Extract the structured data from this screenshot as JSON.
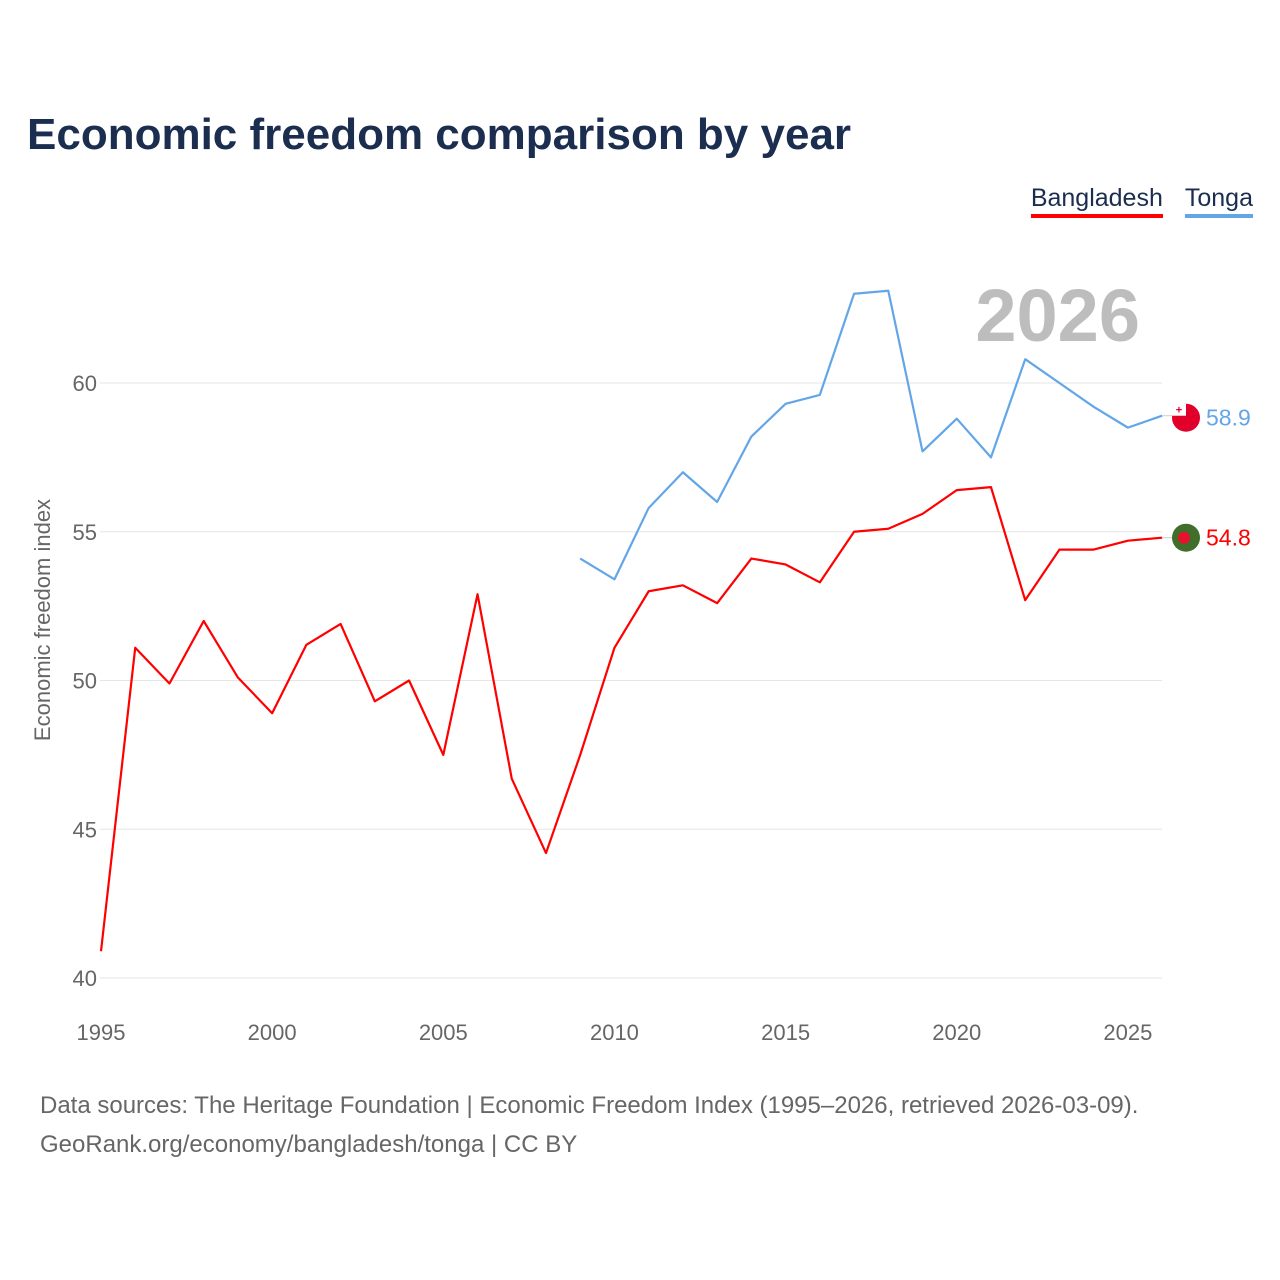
{
  "title": "Economic freedom comparison by year",
  "footer": {
    "line1": "Data sources: The Heritage Foundation | Economic Freedom Index (1995–2026, retrieved 2026-03-09).",
    "line2": "GeoRank.org/economy/bangladesh/tonga | CC BY"
  },
  "chart_data": {
    "type": "line",
    "title": "Economic freedom comparison by year",
    "xlabel": "",
    "ylabel": "Economic freedom index",
    "year_label": "2026",
    "xlim": [
      1995,
      2026
    ],
    "ylim": [
      40,
      64
    ],
    "x_ticks": [
      1995,
      2000,
      2005,
      2010,
      2015,
      2020,
      2025
    ],
    "y_ticks": [
      40,
      45,
      50,
      55,
      60
    ],
    "grid": true,
    "legend_placement": "top-right",
    "series": [
      {
        "name": "Bangladesh",
        "color": "#ff0000",
        "end_label": "54.8",
        "x": [
          1995,
          1996,
          1997,
          1998,
          1999,
          2000,
          2001,
          2002,
          2003,
          2004,
          2005,
          2006,
          2007,
          2008,
          2009,
          2010,
          2011,
          2012,
          2013,
          2014,
          2015,
          2016,
          2017,
          2018,
          2019,
          2020,
          2021,
          2022,
          2023,
          2024,
          2025,
          2026
        ],
        "values": [
          40.9,
          51.1,
          49.9,
          52.0,
          50.1,
          48.9,
          51.2,
          51.9,
          49.3,
          50.0,
          47.5,
          52.9,
          46.7,
          44.2,
          47.5,
          51.1,
          53.0,
          53.2,
          52.6,
          54.1,
          53.9,
          53.3,
          55.0,
          55.1,
          55.6,
          56.4,
          56.5,
          52.7,
          54.4,
          54.4,
          54.7,
          54.8
        ]
      },
      {
        "name": "Tonga",
        "color": "#63a6e8",
        "end_label": "58.9",
        "x": [
          2009,
          2010,
          2011,
          2012,
          2013,
          2014,
          2015,
          2016,
          2017,
          2018,
          2019,
          2020,
          2021,
          2022,
          2023,
          2024,
          2025,
          2026
        ],
        "values": [
          54.1,
          53.4,
          55.8,
          57.0,
          56.0,
          58.2,
          59.3,
          59.6,
          63.0,
          63.1,
          57.7,
          58.8,
          57.5,
          60.8,
          60.0,
          59.2,
          58.5,
          58.9
        ]
      }
    ]
  }
}
